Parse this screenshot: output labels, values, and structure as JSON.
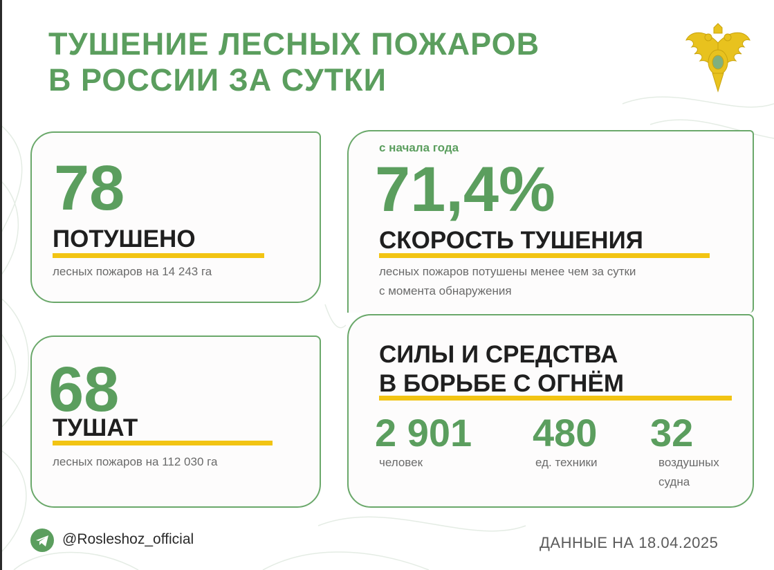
{
  "title": {
    "line1": "ТУШЕНИЕ ЛЕСНЫХ ПОЖАРОВ",
    "line2": "В РОССИИ ЗА СУТКИ"
  },
  "extinguished": {
    "number": "78",
    "label": "ПОТУШЕНО",
    "note": "лесных пожаров на 14 243 га"
  },
  "active": {
    "number": "68",
    "label": "ТУШАТ",
    "note": "лесных пожаров на 112 030 га"
  },
  "speed": {
    "since": "с начала года",
    "percent": "71,4%",
    "label": "СКОРОСТЬ ТУШЕНИЯ",
    "note_line1": "лесных пожаров потушены менее чем за сутки",
    "note_line2": "с момента обнаружения"
  },
  "forces": {
    "heading_line1": "СИЛЫ И СРЕДСТВА",
    "heading_line2": "В БОРЬБЕ С ОГНЁМ",
    "people": {
      "value": "2 901",
      "unit": "человек"
    },
    "equipment": {
      "value": "480",
      "unit": "ед. техники"
    },
    "aircraft": {
      "value": "32",
      "unit_line1": "воздушных",
      "unit_line2": "судна"
    }
  },
  "footer": {
    "handle": "@Rosleshoz_official",
    "date": "ДАННЫЕ НА 18.04.2025"
  },
  "colors": {
    "green": "#5b9e5e",
    "border": "#6aa86a",
    "accent": "#f2c413",
    "text": "#1f1f1f"
  },
  "icons": {
    "emblem": "double-headed-eagle-emblem",
    "telegram": "telegram-icon"
  }
}
